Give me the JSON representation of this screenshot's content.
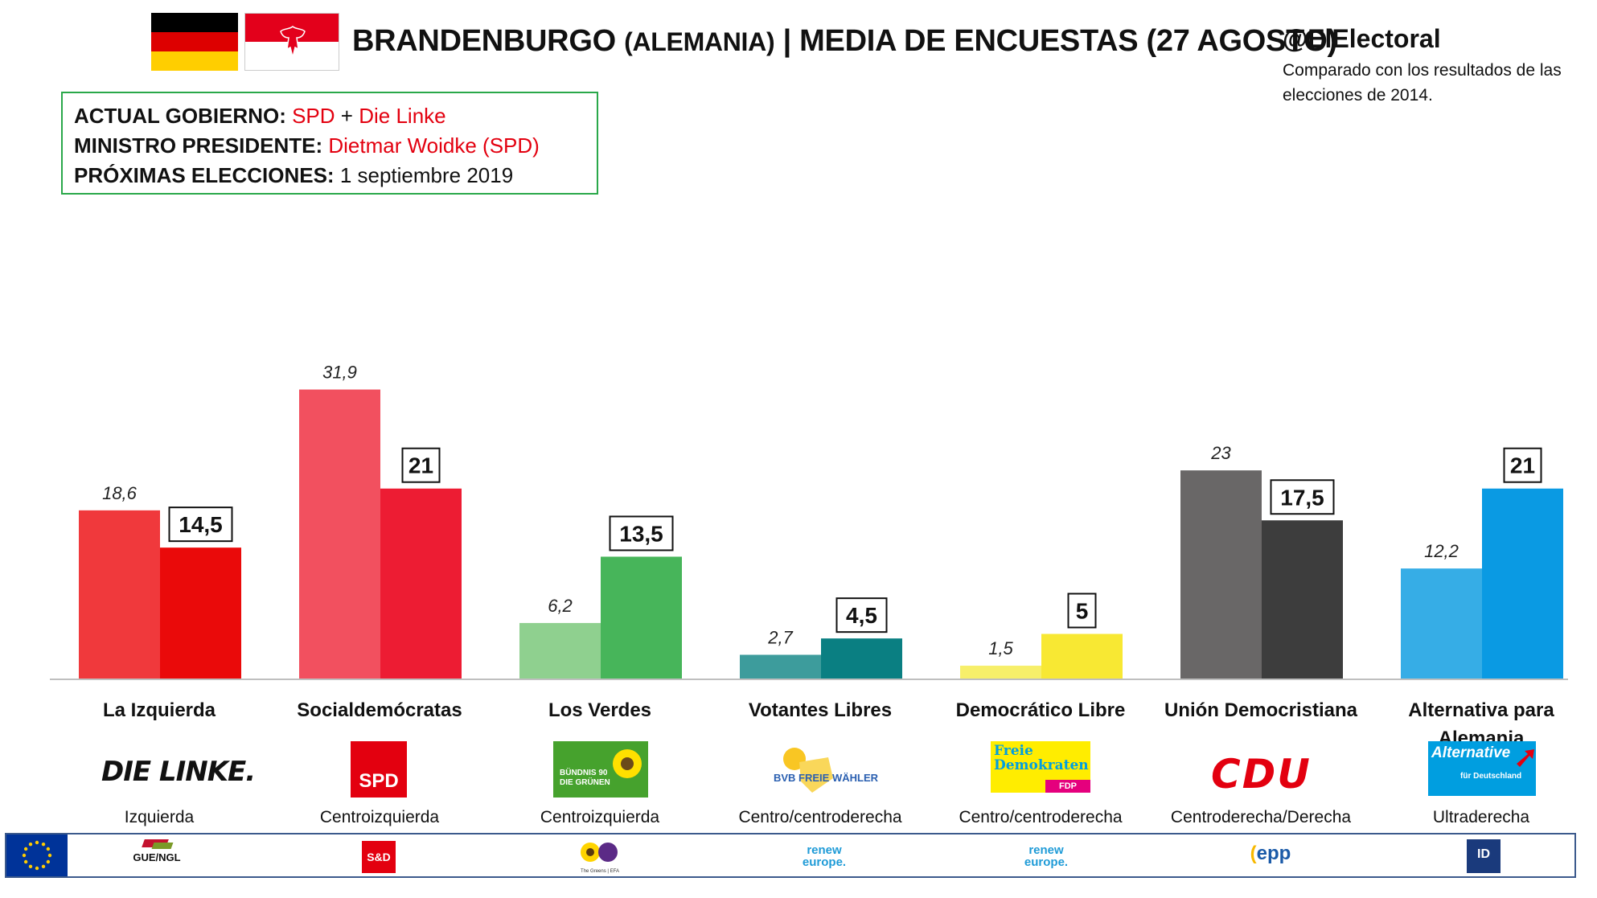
{
  "header": {
    "title_main": "BRANDENBURGO",
    "title_paren": "(ALEMANIA)",
    "title_rest": "| MEDIA DE ENCUESTAS (27 AGOSTO)",
    "handle": "@ElElectoral",
    "note": "Comparado con los resultados de las elecciones de 2014."
  },
  "info": {
    "gov_label": "ACTUAL GOBIERNO:",
    "gov_party1": "SPD",
    "gov_plus": "+",
    "gov_party2": "Die Linke",
    "minister_label": "MINISTRO PRESIDENTE:",
    "minister_value": "Dietmar Woidke (SPD)",
    "elections_label": "PRÓXIMAS ELECCIONES:",
    "elections_value": "1 septiembre 2019"
  },
  "chart_data": {
    "type": "bar",
    "categories": [
      "La Izquierda",
      "Socialdemócratas",
      "Los Verdes",
      "Votantes Libres",
      "Democrático Libre",
      "Unión Democristiana",
      "Alternativa para Alemania"
    ],
    "series": [
      {
        "values": [
          18.6,
          31.9,
          6.2,
          2.7,
          1.5,
          23,
          12.2
        ],
        "labels": [
          "18,6",
          "31,9",
          "6,2",
          "2,7",
          "1,5",
          "23",
          "12,2"
        ]
      },
      {
        "values": [
          14.5,
          21,
          13.5,
          4.5,
          5,
          17.5,
          21
        ],
        "labels": [
          "14,5",
          "21",
          "13,5",
          "4,5",
          "5",
          "17,5",
          "21"
        ]
      }
    ],
    "ylim": [
      0,
      32
    ],
    "colors_prev": [
      "#f0393c",
      "#f2505f",
      "#8fd08f",
      "#3d9c9c",
      "#f7ef6a",
      "#696767",
      "#36ade6"
    ],
    "colors_curr": [
      "#ea0a0a",
      "#ed1c33",
      "#47b55a",
      "#0a7f82",
      "#f8e833",
      "#3d3d3d",
      "#0a9ae3"
    ]
  },
  "parties": [
    {
      "name": "La Izquierda",
      "ideology": "Izquierda",
      "logo_text": "DIE LINKE.",
      "eu_group": "GUE/NGL"
    },
    {
      "name": "Socialdemócratas",
      "ideology": "Centroizquierda",
      "logo_text": "SPD",
      "eu_group": "S&D"
    },
    {
      "name": "Los Verdes",
      "ideology": "Centroizquierda",
      "logo_text": "BÜNDNIS 90 DIE GRÜNEN",
      "eu_group": "The Greens | EFA"
    },
    {
      "name": "Votantes Libres",
      "ideology": "Centro/centroderecha",
      "logo_text": "BVB FREIE WÄHLER",
      "eu_group": "renew europe."
    },
    {
      "name": "Democrático Libre",
      "ideology": "Centro/centroderecha",
      "logo_text_1": "Freie",
      "logo_text_2": "Demokraten",
      "logo_text_3": "FDP",
      "eu_group": "renew europe."
    },
    {
      "name": "Unión Democristiana",
      "ideology": "Centroderecha/Derecha",
      "logo_text": "CDU",
      "eu_group": "epp"
    },
    {
      "name": "Alternativa para Alemania",
      "ideology": "Ultraderecha",
      "logo_text_1": "Alternative",
      "logo_text_2": "für Deutschland",
      "eu_group": "ID"
    }
  ]
}
